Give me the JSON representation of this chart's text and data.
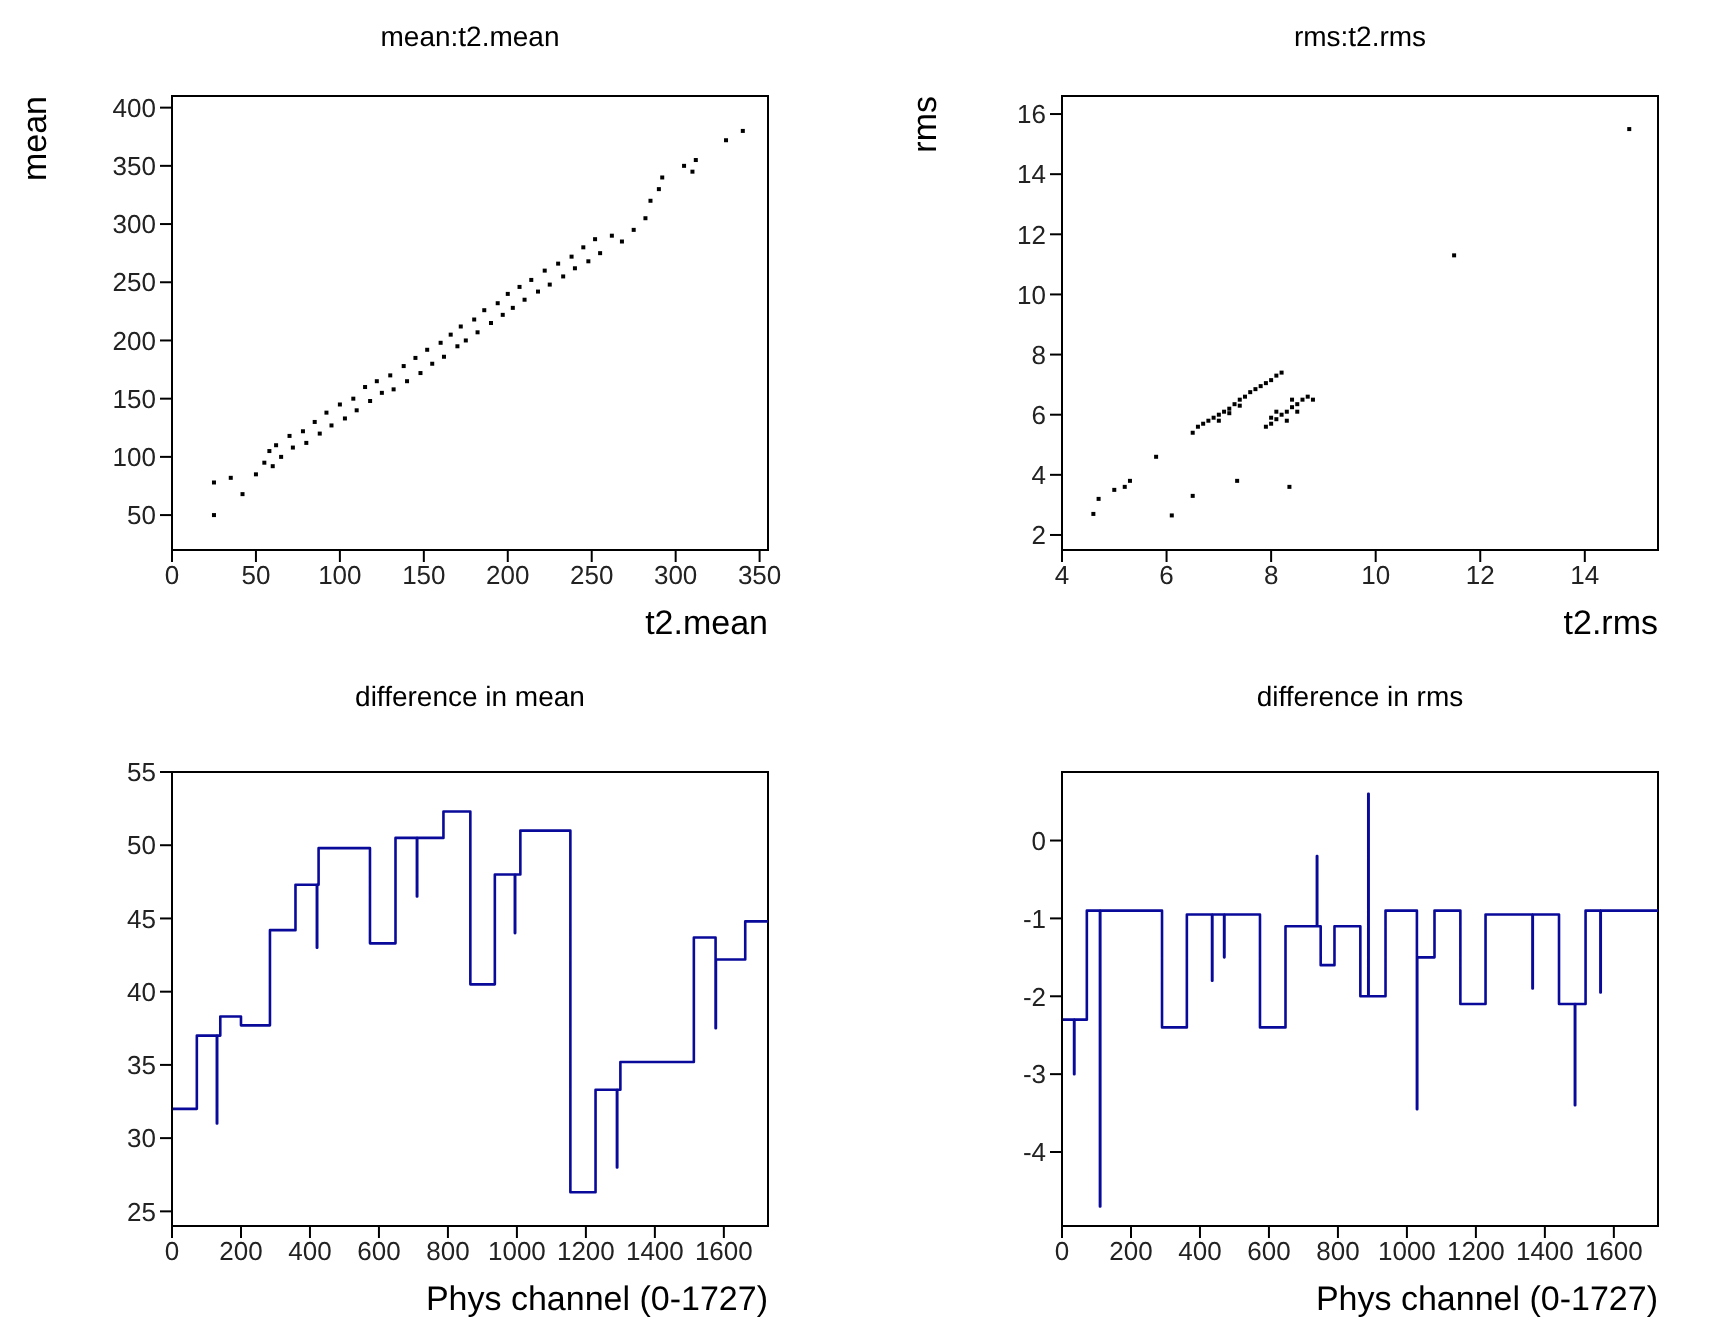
{
  "chart_data": [
    {
      "type": "scatter",
      "title": "mean:t2.mean",
      "xlabel": "t2.mean",
      "ylabel": "mean",
      "xlim": [
        0,
        355
      ],
      "ylim": [
        20,
        410
      ],
      "xticks": [
        0,
        50,
        100,
        150,
        200,
        250,
        300,
        350
      ],
      "yticks": [
        50,
        100,
        150,
        200,
        250,
        300,
        350,
        400
      ],
      "series": [
        {
          "color": "#000000",
          "x": [
            25,
            25,
            35,
            42,
            50,
            55,
            58,
            60,
            62,
            65,
            70,
            72,
            78,
            80,
            85,
            88,
            92,
            95,
            100,
            103,
            108,
            110,
            115,
            118,
            122,
            125,
            130,
            132,
            138,
            140,
            145,
            148,
            152,
            155,
            160,
            162,
            166,
            170,
            172,
            175,
            180,
            182,
            186,
            190,
            194,
            197,
            200,
            203,
            207,
            210,
            214,
            218,
            222,
            225,
            230,
            233,
            238,
            240,
            245,
            248,
            252,
            255,
            262,
            268,
            275,
            282,
            285,
            290,
            292,
            305,
            310,
            312,
            330,
            340
          ],
          "values": [
            50,
            78,
            82,
            68,
            85,
            95,
            105,
            92,
            110,
            100,
            118,
            108,
            122,
            112,
            130,
            120,
            138,
            127,
            145,
            133,
            150,
            140,
            160,
            148,
            165,
            155,
            170,
            158,
            178,
            165,
            185,
            172,
            192,
            180,
            198,
            186,
            205,
            195,
            212,
            200,
            218,
            207,
            226,
            215,
            232,
            222,
            240,
            228,
            246,
            235,
            252,
            242,
            260,
            248,
            266,
            255,
            272,
            262,
            280,
            268,
            287,
            275,
            290,
            285,
            295,
            305,
            320,
            330,
            340,
            350,
            345,
            355,
            372,
            380
          ]
        }
      ]
    },
    {
      "type": "scatter",
      "title": "rms:t2.rms",
      "xlabel": "t2.rms",
      "ylabel": "rms",
      "xlim": [
        4,
        15.4
      ],
      "ylim": [
        1.5,
        16.6
      ],
      "xticks": [
        4,
        6,
        8,
        10,
        12,
        14
      ],
      "yticks": [
        2,
        4,
        6,
        8,
        10,
        12,
        14,
        16
      ],
      "series": [
        {
          "color": "#000000",
          "x": [
            14.85,
            11.5,
            4.6,
            4.7,
            5.0,
            5.2,
            5.3,
            5.8,
            6.1,
            6.5,
            7.35,
            8.35,
            6.5,
            6.6,
            6.7,
            6.8,
            6.9,
            7.0,
            7.1,
            7.2,
            7.3,
            7.4,
            7.5,
            7.6,
            7.7,
            7.8,
            7.9,
            8.0,
            8.1,
            8.2,
            7.0,
            7.2,
            7.4,
            7.9,
            8.0,
            8.1,
            8.2,
            8.3,
            8.4,
            8.5,
            8.6,
            8.7,
            8.8,
            8.1,
            8.3,
            8.5,
            8.4,
            8.0
          ],
          "values": [
            15.5,
            11.3,
            2.7,
            3.2,
            3.5,
            3.6,
            3.8,
            4.6,
            2.65,
            3.3,
            3.8,
            3.6,
            5.4,
            5.6,
            5.7,
            5.8,
            5.9,
            6.0,
            6.1,
            6.2,
            6.35,
            6.5,
            6.6,
            6.75,
            6.85,
            6.95,
            7.05,
            7.15,
            7.3,
            7.4,
            5.8,
            6.05,
            6.3,
            5.6,
            5.7,
            5.85,
            6.0,
            6.1,
            6.25,
            6.35,
            6.5,
            6.6,
            6.5,
            6.1,
            5.8,
            6.1,
            6.5,
            5.9
          ]
        }
      ]
    },
    {
      "type": "step",
      "title": "difference in mean",
      "xlabel": "Phys channel (0-1727)",
      "xlim": [
        0,
        1728
      ],
      "ylim": [
        24,
        55
      ],
      "xticks": [
        0,
        200,
        400,
        600,
        800,
        1000,
        1200,
        1400,
        1600
      ],
      "yticks": [
        25,
        30,
        35,
        40,
        45,
        50,
        55
      ],
      "series": [
        {
          "color": "#0a0a9a",
          "x": [
            0,
            72,
            130,
            131,
            140,
            200,
            284,
            358,
            420,
            421,
            425,
            574,
            648,
            710,
            711,
            787,
            865,
            936,
            994,
            995,
            1010,
            1155,
            1228,
            1290,
            1291,
            1300,
            1513,
            1576,
            1577,
            1580,
            1662,
            1728
          ],
          "values": [
            32,
            37,
            31,
            37,
            38.3,
            37.7,
            44.2,
            47.3,
            43,
            47.3,
            49.8,
            43.3,
            50.5,
            46.5,
            50.5,
            52.3,
            40.5,
            48,
            44,
            48,
            51,
            26.3,
            33.3,
            28,
            33.3,
            35.2,
            43.7,
            37.5,
            42.2,
            42.2,
            44.8,
            44.8
          ]
        }
      ]
    },
    {
      "type": "step",
      "title": "difference in rms",
      "xlabel": "Phys channel (0-1727)",
      "xlim": [
        0,
        1728
      ],
      "ylim": [
        -4.95,
        0.88
      ],
      "xticks": [
        0,
        200,
        400,
        600,
        800,
        1000,
        1200,
        1400,
        1600
      ],
      "yticks": [
        -4,
        -3,
        -2,
        -1,
        0
      ],
      "series": [
        {
          "color": "#0a0a9a",
          "x": [
            0,
            35,
            36,
            72,
            110,
            111,
            290,
            362,
            435,
            436,
            470,
            471,
            574,
            648,
            739,
            740,
            750,
            790,
            865,
            888,
            889,
            938,
            1029,
            1030,
            1080,
            1155,
            1228,
            1364,
            1365,
            1441,
            1487,
            1488,
            1518,
            1561,
            1562,
            1728
          ],
          "values": [
            -2.3,
            -3,
            -2.3,
            -0.9,
            -4.7,
            -0.9,
            -2.4,
            -0.95,
            -1.8,
            -0.95,
            -1.5,
            -0.95,
            -2.4,
            -1.1,
            -0.2,
            -1.1,
            -1.6,
            -1.1,
            -2.0,
            0.6,
            -2.0,
            -0.9,
            -3.45,
            -1.5,
            -0.9,
            -2.1,
            -0.95,
            -1.9,
            -0.95,
            -2.1,
            -3.4,
            -2.1,
            -0.9,
            -1.95,
            -0.9,
            -0.9
          ]
        }
      ]
    }
  ]
}
